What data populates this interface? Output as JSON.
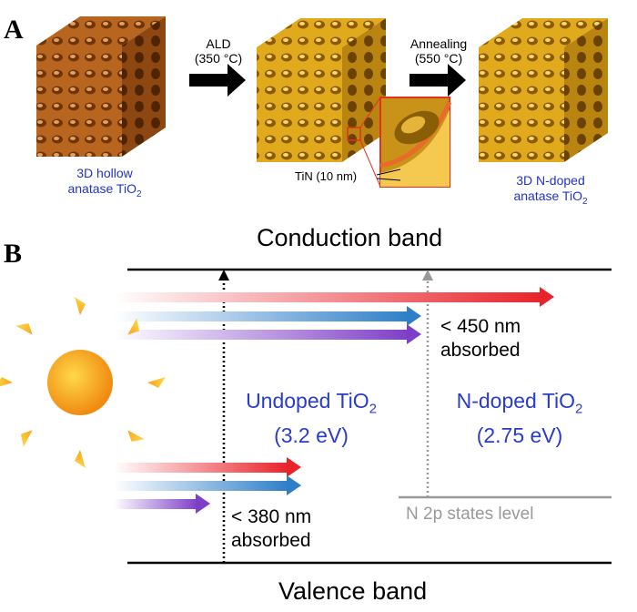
{
  "panel_a": {
    "letter": "A",
    "step1_label": "ALD",
    "step1_temp": "(350 °C)",
    "step2_label": "Annealing",
    "step2_temp": "(550 °C)",
    "cube1_caption_line1": "3D hollow",
    "cube1_caption_line2": "anatase TiO",
    "cube1_caption_sub": "2",
    "tin_label": "TiN (10 nm)",
    "cube3_caption_line1": "3D N-doped",
    "cube3_caption_line2": "anatase TiO",
    "cube3_caption_sub": "2"
  },
  "panel_b": {
    "letter": "B",
    "conduction_band": "Conduction band",
    "valence_band": "Valence band",
    "undoped_line1": "Undoped TiO",
    "undoped_sub": "2",
    "undoped_gap": "(3.2 eV)",
    "doped_line1": "N-doped TiO",
    "doped_sub": "2",
    "doped_gap": "(2.75 eV)",
    "absorb_450_line1": "< 450 nm",
    "absorb_450_line2": "absorbed",
    "absorb_380_line1": "< 380 nm",
    "absorb_380_line2": "absorbed",
    "n2p_states": "N 2p states level"
  },
  "colors": {
    "cube1": "#b8651f",
    "cube2": "#d9a11a",
    "cube3": "#dfa21c",
    "caption_blue": "#2233cc",
    "red_arrow": "#e8232a",
    "blue_arrow": "#2f7fc8",
    "purple_arrow": "#7e3fc8",
    "n2p_gray": "#999999",
    "sun": "#f7a51c"
  }
}
